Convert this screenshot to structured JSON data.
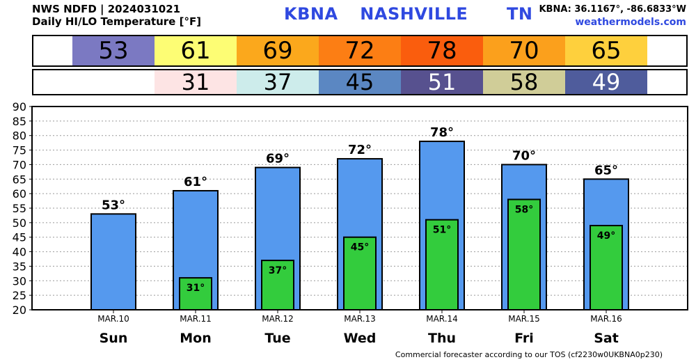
{
  "header": {
    "source": "NWS NDFD | 2024031021",
    "product": "Daily HI/LO Temperature [°F]",
    "station": "KBNA",
    "city": "NASHVILLE",
    "state": "TN",
    "coords": "KBNA: 36.1167°, -86.6833°W",
    "site": "weathermodels.com"
  },
  "footer": "Commercial forecaster according to our TOS (cf2230w0UKBNA0p230)",
  "hi_strip": [
    {
      "value": "53",
      "color": "#7b79c2"
    },
    {
      "value": "61",
      "color": "#fdfd74"
    },
    {
      "value": "69",
      "color": "#fba81c"
    },
    {
      "value": "72",
      "color": "#fc7e14"
    },
    {
      "value": "78",
      "color": "#fa5d0d"
    },
    {
      "value": "70",
      "color": "#fba01c"
    },
    {
      "value": "65",
      "color": "#fed03d"
    }
  ],
  "lo_strip": [
    {
      "value": "",
      "color": "#ffffff"
    },
    {
      "value": "31",
      "color": "#fde4e4",
      "text_color": "#000000"
    },
    {
      "value": "37",
      "color": "#cdeceb",
      "text_color": "#000000"
    },
    {
      "value": "45",
      "color": "#5b87c2",
      "text_color": "#000000"
    },
    {
      "value": "51",
      "color": "#57518f",
      "text_color": "#ffffff"
    },
    {
      "value": "58",
      "color": "#d0cd98",
      "text_color": "#000000"
    },
    {
      "value": "49",
      "color": "#4f5c9c",
      "text_color": "#ffffff"
    }
  ],
  "chart_data": {
    "type": "bar",
    "categories": [
      "Sun",
      "Mon",
      "Tue",
      "Wed",
      "Thu",
      "Fri",
      "Sat"
    ],
    "dates": [
      "MAR.10",
      "MAR.11",
      "MAR.12",
      "MAR.13",
      "MAR.14",
      "MAR.15",
      "MAR.16"
    ],
    "series": [
      {
        "name": "HI",
        "values": [
          53,
          61,
          69,
          72,
          78,
          70,
          65
        ],
        "color": "#5599ee"
      },
      {
        "name": "LO",
        "values": [
          null,
          31,
          37,
          45,
          51,
          58,
          49
        ],
        "color": "#33cc3d"
      }
    ],
    "hi_labels": [
      "53°",
      "61°",
      "69°",
      "72°",
      "78°",
      "70°",
      "65°"
    ],
    "lo_labels": [
      "",
      "31°",
      "37°",
      "45°",
      "51°",
      "58°",
      "49°"
    ],
    "yticks": [
      20,
      25,
      30,
      35,
      40,
      45,
      50,
      55,
      60,
      65,
      70,
      75,
      80,
      85,
      90
    ],
    "ylim": [
      20,
      90
    ],
    "grid": true
  }
}
